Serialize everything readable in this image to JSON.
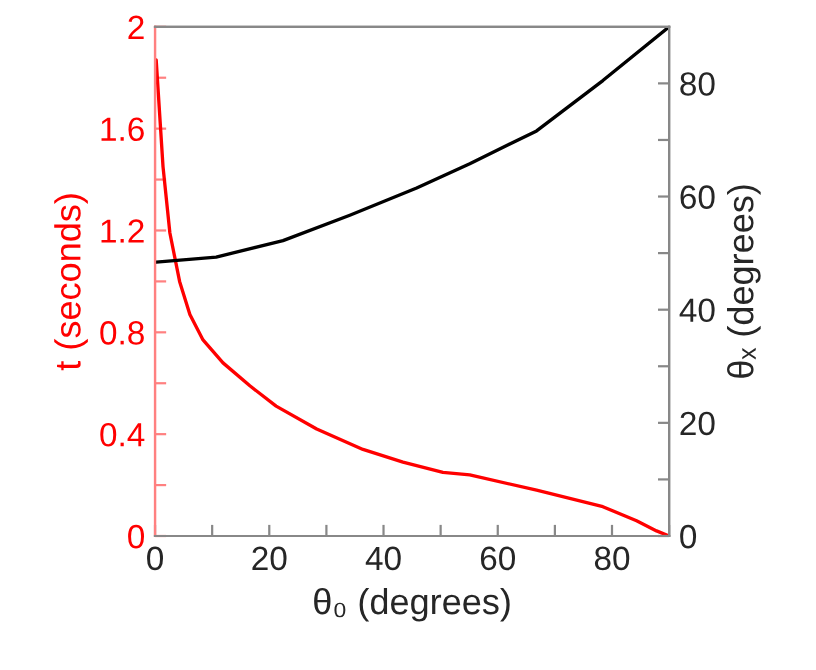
{
  "chart_data": {
    "type": "line",
    "xlabel": "θ₀ (degrees)",
    "ylabel": "t (seconds)",
    "y2label": "θₓ (degrees)",
    "xlim": [
      0,
      90
    ],
    "xticks": [
      0,
      {
        "value": 10,
        "label": null
      },
      20,
      {
        "value": 30,
        "label": null
      },
      40,
      {
        "value": 50,
        "label": null
      },
      60,
      {
        "value": 70,
        "label": null
      },
      80,
      {
        "value": 90,
        "label": null
      }
    ],
    "ylim": [
      0,
      2
    ],
    "yticks": [
      0,
      {
        "value": 0.2,
        "label": null
      },
      0.4,
      {
        "value": 0.6,
        "label": null
      },
      0.8,
      {
        "value": 1.0,
        "label": null
      },
      1.2,
      {
        "value": 1.4,
        "label": null
      },
      1.6,
      {
        "value": 1.8,
        "label": null
      },
      2
    ],
    "y2lim": [
      0,
      90
    ],
    "y2ticks": [
      0,
      {
        "value": 10,
        "label": null
      },
      20,
      {
        "value": 30,
        "label": null
      },
      40,
      {
        "value": 50,
        "label": null
      },
      60,
      {
        "value": 70,
        "label": null
      },
      80
    ],
    "grid": false,
    "legend": false,
    "series": [
      {
        "color": "#ff0000",
        "x": [
          0.2,
          1.4,
          2.6,
          4.3,
          6.1,
          8.4,
          11.9,
          16.6,
          21.2,
          28.3,
          36.4,
          43.4,
          50.4,
          55.1,
          66.8,
          78.4,
          84.3,
          87.8,
          90
        ],
        "values": [
          1.87,
          1.45,
          1.19,
          1.0,
          0.87,
          0.77,
          0.68,
          0.59,
          0.51,
          0.42,
          0.34,
          0.29,
          0.25,
          0.24,
          0.18,
          0.115,
          0.06,
          0.02,
          0
        ]
      },
      {
        "color": "#000000",
        "axis": "y2",
        "x": [
          0.2,
          10.7,
          22.4,
          34.1,
          45.8,
          55.1,
          66.8,
          78.4,
          90
        ],
        "values": [
          48.4,
          49.3,
          52.2,
          56.7,
          61.5,
          65.8,
          71.6,
          80.5,
          90
        ]
      }
    ]
  }
}
